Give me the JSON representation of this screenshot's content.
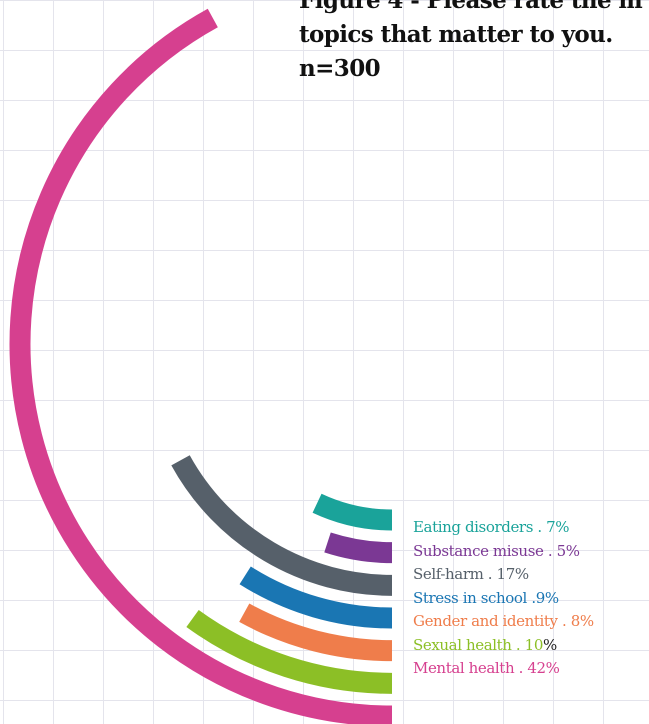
{
  "title_lines": [
    "Figure 4 - Please rate the m",
    "topics that matter to you.",
    "n=300"
  ],
  "chart_data": {
    "type": "radial-bar",
    "unit": "%",
    "series": [
      {
        "name": "Eating disorders",
        "value": 7,
        "color": "#1aa39a",
        "pct_label": "7%",
        "suffix": ""
      },
      {
        "name": "Substance misuse",
        "value": 5,
        "color": "#7b3894",
        "pct_label": "5%",
        "suffix": ""
      },
      {
        "name": "Self-harm",
        "value": 17,
        "color": "#56606a",
        "pct_label": "17%",
        "suffix": ""
      },
      {
        "name": "Stress in school",
        "value": 9,
        "color": "#1a76b3",
        "pct_label": "9%",
        "suffix": ""
      },
      {
        "name": "Gender and identity",
        "value": 8,
        "color": "#ef7d4b",
        "pct_label": "8%",
        "suffix": ""
      },
      {
        "name": "Sexual health",
        "value": 10,
        "color": "#8cbf26",
        "pct_label": "10",
        "suffix": "%"
      },
      {
        "name": "Mental health",
        "value": 42,
        "color": "#d6408f",
        "pct_label": "42%",
        "suffix": ""
      }
    ]
  }
}
